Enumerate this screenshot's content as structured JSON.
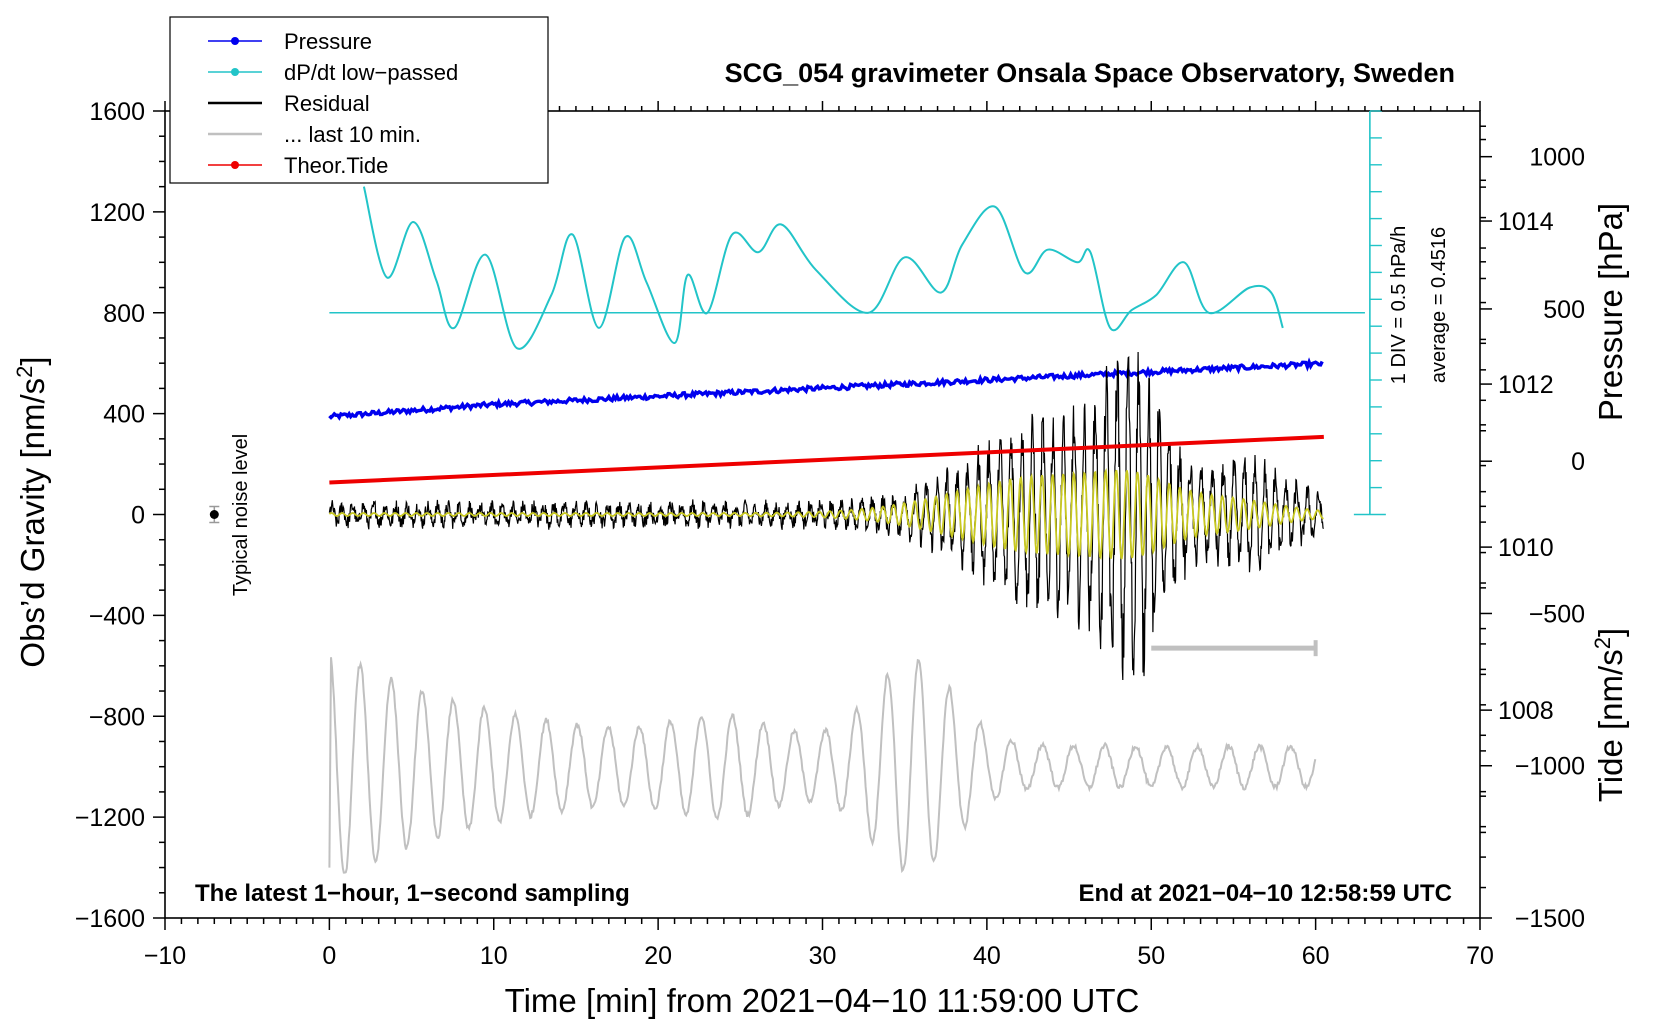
{
  "chart_data": {
    "type": "line",
    "title": "SCG_054 gravimeter Onsala Space Observatory, Sweden",
    "xlabel": "Time [min] from 2021−04−10 11:59:00 UTC",
    "xlim": [
      -10,
      70
    ],
    "xticks": [
      "−10",
      "0",
      "10",
      "20",
      "30",
      "40",
      "50",
      "60",
      "70"
    ],
    "left_axis": {
      "label": "Obs’d Gravity [nm/s",
      "label_sup": "2",
      "label_end": "]",
      "ylim": [
        -1600,
        1600
      ],
      "ticks": [
        "1600",
        "1200",
        "800",
        "400",
        "0",
        "−400",
        "−800",
        "−1200",
        "−1600"
      ]
    },
    "pressure_axis": {
      "label": "Pressure [hPa]",
      "ylim_hpa": [
        1005.45,
        1015.35
      ],
      "ticks": [
        "1014",
        "1012",
        "1010",
        "1008"
      ]
    },
    "tide_axis": {
      "label": "Tide [nm/s",
      "label_sup": "2",
      "label_end": "]",
      "ylim": [
        -1500,
        1150
      ],
      "ticks": [
        "1000",
        "500",
        "0",
        "−500",
        "−1000",
        "−1500"
      ]
    },
    "dpdt_scale": {
      "text_div": "1 DIV = 0.5 hPa/h",
      "text_avg": "average = 0.4516"
    },
    "noise_label": "Typical noise level",
    "note_left": "The latest 1−hour, 1−second sampling",
    "note_right": "End at 2021−04−10 12:58:59 UTC",
    "legend": [
      {
        "name": "Pressure",
        "color": "#0000ee",
        "style": "line-dot"
      },
      {
        "name": "dP/dt low−passed",
        "color": "#22c4c8",
        "style": "line-dot"
      },
      {
        "name": "Residual",
        "color": "#000000",
        "style": "line"
      },
      {
        "name": "... last 10 min.",
        "color": "#c0c0c0",
        "style": "line"
      },
      {
        "name": "Theor.Tide",
        "color": "#ee0000",
        "style": "line-dot"
      }
    ],
    "series": [
      {
        "name": "Pressure",
        "axis": "pressure",
        "unit": "hPa",
        "x": [
          0,
          10,
          20,
          30,
          40,
          50,
          60.5
        ],
        "y": [
          1011.6,
          1011.75,
          1011.85,
          1011.95,
          1012.05,
          1012.15,
          1012.25
        ]
      },
      {
        "name": "dP/dt low−passed",
        "axis": "gravity_plot",
        "x": [
          2.1,
          3.5,
          5.1,
          6.5,
          7.6,
          9.5,
          11.4,
          13.5,
          14.8,
          16.4,
          18.0,
          19.3,
          21.0,
          21.8,
          23.0,
          24.5,
          26.1,
          27.5,
          29.6,
          32.8,
          35.0,
          37.2,
          38.5,
          40.5,
          42.3,
          43.7,
          45.5,
          46.3,
          47.5,
          48.8,
          50.3,
          52.0,
          53.5,
          56.0,
          57.3,
          58.0
        ],
        "y": [
          1300,
          940,
          1160,
          930,
          740,
          1030,
          660,
          870,
          1110,
          740,
          1100,
          920,
          680,
          950,
          800,
          1110,
          1040,
          1150,
          970,
          800,
          1020,
          880,
          1070,
          1220,
          960,
          1050,
          1000,
          1040,
          740,
          810,
          870,
          1000,
          800,
          900,
          880,
          740
        ]
      },
      {
        "name": "dP/dt baseline",
        "axis": "gravity_plot",
        "x": [
          0,
          63
        ],
        "y": [
          800,
          800
        ]
      },
      {
        "name": "Residual",
        "axis": "gravity",
        "x_range": [
          0,
          60.5
        ],
        "peak_amplitude": 690,
        "peak_at": 49
      },
      {
        "name": "... last 10 min.",
        "axis": "gravity_plot",
        "x_range": [
          0,
          60
        ],
        "first_value": -1400,
        "max_value": -510
      },
      {
        "name": "Theor.Tide",
        "axis": "tide",
        "unit": "nm/s2",
        "x": [
          0,
          60.5
        ],
        "y": [
          -70,
          80
        ]
      },
      {
        "name": "Filtered residual",
        "axis": "gravity",
        "color": "#c8c820",
        "x_range": [
          0,
          60.5
        ]
      }
    ],
    "last10_bar_x": [
      50,
      60
    ],
    "noise_point": {
      "x": -7,
      "y": 0
    }
  }
}
